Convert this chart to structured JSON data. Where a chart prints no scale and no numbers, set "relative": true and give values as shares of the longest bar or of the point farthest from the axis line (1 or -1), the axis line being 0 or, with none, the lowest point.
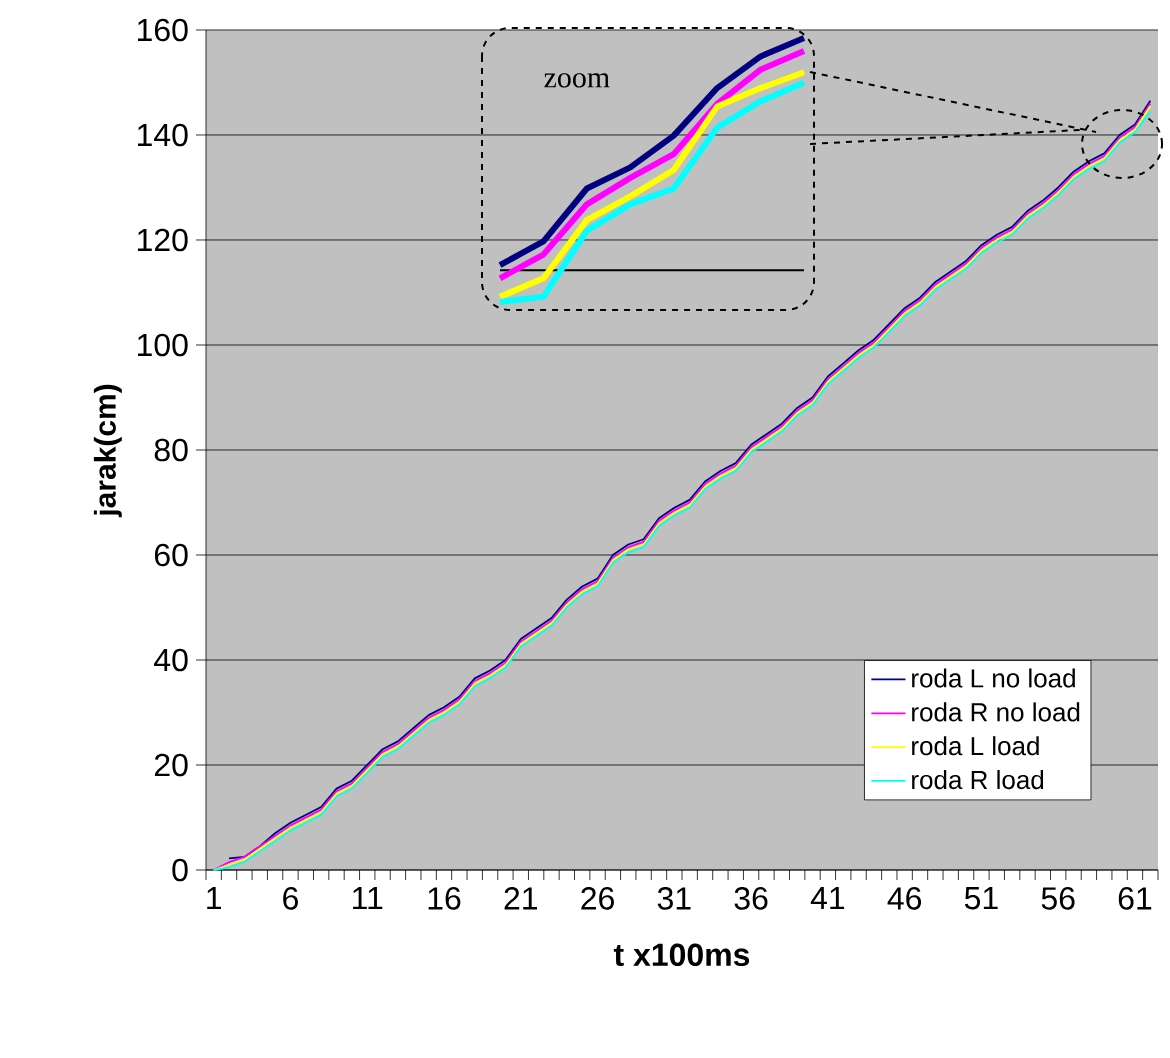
{
  "chart_data": [
    {
      "type": "line",
      "categories": [
        "1",
        null,
        null,
        null,
        null,
        "6",
        null,
        null,
        null,
        null,
        "11",
        null,
        null,
        null,
        null,
        "16",
        null,
        null,
        null,
        null,
        "21",
        null,
        null,
        null,
        null,
        "26",
        null,
        null,
        null,
        null,
        "31",
        null,
        null,
        null,
        null,
        "36",
        null,
        null,
        null,
        null,
        "41",
        null,
        null,
        null,
        null,
        "46",
        null,
        null,
        null,
        null,
        "51",
        null,
        null,
        null,
        null,
        "56",
        null,
        null,
        null,
        null,
        "61",
        null
      ],
      "xlabel": "t x100ms",
      "ylabel": "jarak(cm)",
      "ylim": [
        0,
        160
      ],
      "yticks": [
        0,
        20,
        40,
        60,
        80,
        100,
        120,
        140,
        160
      ],
      "grid": "y",
      "legend": "bottom right",
      "series": [
        {
          "name": "roda L no load",
          "color": "#000080",
          "values": [
            null,
            2.2,
            2.5,
            4.5,
            7,
            9,
            10.5,
            12,
            15.5,
            17,
            20,
            23,
            24.5,
            27,
            29.5,
            31,
            33,
            36.5,
            38,
            40,
            44,
            46,
            48,
            51.5,
            54,
            55.5,
            60,
            62,
            63,
            67,
            69,
            70.5,
            74,
            76,
            77.5,
            81,
            83,
            85,
            88,
            90,
            94,
            96.5,
            99,
            101,
            104,
            107,
            109,
            112,
            114,
            116,
            119,
            121,
            122.5,
            125.5,
            127.5,
            130,
            133,
            135,
            136.5,
            140,
            142,
            146.5
          ]
        },
        {
          "name": "roda R no load",
          "color": "#ff00ff",
          "values": [
            0,
            1.5,
            2.5,
            4.5,
            6.5,
            8.5,
            10,
            11.5,
            15,
            16.5,
            19.5,
            22.5,
            24,
            26.5,
            29,
            30.5,
            32.5,
            36,
            37.5,
            39.5,
            43.5,
            45.5,
            47.5,
            51,
            53.5,
            55,
            59.5,
            61.5,
            62.5,
            66.5,
            68.5,
            70,
            73.5,
            75.5,
            77,
            80.5,
            82.5,
            84.5,
            87.5,
            89.5,
            93.5,
            96,
            98.5,
            100.5,
            103.5,
            106.5,
            108.5,
            111.5,
            113.5,
            115.5,
            118.5,
            120.5,
            122,
            125,
            127,
            129.5,
            132.5,
            134.5,
            136,
            139.5,
            141.5,
            146
          ]
        },
        {
          "name": "roda L load",
          "color": "#ffff00",
          "values": [
            0,
            1,
            2,
            4,
            6,
            8,
            9.5,
            11,
            14.5,
            16,
            19,
            22,
            23.5,
            26,
            28.5,
            30,
            32,
            35.5,
            37,
            39,
            43,
            45,
            47,
            50.5,
            53,
            54.5,
            59,
            61,
            62,
            66,
            68,
            69.5,
            73,
            75,
            76.5,
            80,
            82,
            84,
            87,
            89,
            93,
            95.5,
            98,
            100,
            103,
            106,
            108,
            111,
            113,
            115,
            118,
            120,
            121.5,
            124.5,
            126.5,
            129,
            132,
            134,
            135.5,
            139,
            141,
            145.5
          ]
        },
        {
          "name": "roda R load",
          "color": "#00ffff",
          "values": [
            0,
            0.5,
            1.5,
            3.5,
            5.5,
            7.5,
            9,
            10.5,
            14,
            15.5,
            18.5,
            21.5,
            23,
            25.5,
            28,
            29.5,
            31.5,
            35,
            36.5,
            38.5,
            42.5,
            44.5,
            46.5,
            50,
            52.5,
            54,
            58.5,
            60.5,
            61.5,
            65.5,
            67.5,
            69,
            72.5,
            74.5,
            76,
            79.5,
            81.5,
            83.5,
            86.5,
            88.5,
            92.5,
            95,
            97.5,
            99.5,
            102.5,
            105.5,
            107.5,
            110.5,
            112.5,
            114.5,
            117.5,
            119.5,
            121,
            124,
            126,
            128.5,
            131.5,
            133.5,
            135,
            138.5,
            140.5,
            144.5
          ]
        }
      ]
    },
    {
      "type": "line",
      "relative": true,
      "categories": [
        null,
        null,
        null,
        null,
        null,
        null,
        null,
        null
      ],
      "annotations": [
        "zoom"
      ],
      "ref_lines": [
        {
          "axis": "y",
          "value": 0.12,
          "color": "#000000"
        }
      ],
      "series": [
        {
          "color": "#000080",
          "values": [
            0.14,
            0.23,
            0.43,
            0.51,
            0.63,
            0.81,
            0.93,
            1.0
          ]
        },
        {
          "color": "#ff00ff",
          "values": [
            0.09,
            0.18,
            0.37,
            0.47,
            0.56,
            0.75,
            0.88,
            0.95
          ]
        },
        {
          "color": "#ffff00",
          "values": [
            0.02,
            0.09,
            0.31,
            0.4,
            0.5,
            0.74,
            0.81,
            0.87
          ]
        },
        {
          "color": "#00ffff",
          "values": [
            0,
            0.02,
            0.27,
            0.37,
            0.43,
            0.66,
            0.76,
            0.83
          ]
        }
      ]
    }
  ]
}
